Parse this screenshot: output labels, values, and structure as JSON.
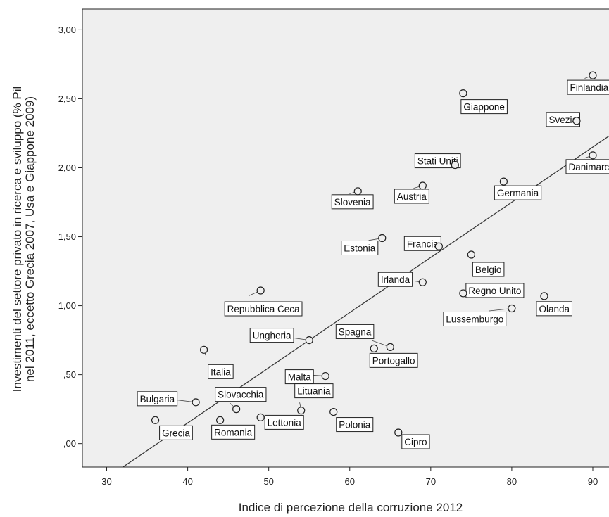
{
  "chart_data": {
    "type": "scatter",
    "title": "",
    "xlabel": "Indice di percezione della corruzione 2012",
    "ylabel_lines": [
      "Investimenti del settore privato in ricerca e sviluppo (% Pil",
      "nel 2011, eccetto Grecia 2007, Usa e Giappone 2009)"
    ],
    "xlim": [
      27,
      92
    ],
    "ylim": [
      -0.17,
      3.15
    ],
    "xticks": [
      30,
      40,
      50,
      60,
      70,
      80,
      90
    ],
    "xtick_labels": [
      "30",
      "40",
      "50",
      "60",
      "70",
      "80",
      "90"
    ],
    "yticks": [
      0.0,
      0.5,
      1.0,
      1.5,
      2.0,
      2.5,
      3.0
    ],
    "ytick_labels": [
      ",00",
      ",50",
      "1,00",
      "1,50",
      "2,00",
      "2,50",
      "3,00"
    ],
    "background": "#efefef",
    "fit_line": {
      "x": [
        32,
        92
      ],
      "y": [
        -0.17,
        2.23
      ]
    },
    "points": [
      {
        "label": "Finlandia",
        "x": 90,
        "y": 2.67
      },
      {
        "label": "Giappone",
        "x": 74,
        "y": 2.54
      },
      {
        "label": "Svezia",
        "x": 88,
        "y": 2.34
      },
      {
        "label": "Danimarca",
        "x": 90,
        "y": 2.09
      },
      {
        "label": "Stati Uniti",
        "x": 73,
        "y": 2.02
      },
      {
        "label": "Germania",
        "x": 79,
        "y": 1.9
      },
      {
        "label": "Austria",
        "x": 69,
        "y": 1.87
      },
      {
        "label": "Slovenia",
        "x": 61,
        "y": 1.83
      },
      {
        "label": "Estonia",
        "x": 64,
        "y": 1.49
      },
      {
        "label": "Francia",
        "x": 71,
        "y": 1.43
      },
      {
        "label": "Belgio",
        "x": 75,
        "y": 1.37
      },
      {
        "label": "Irlanda",
        "x": 69,
        "y": 1.17
      },
      {
        "label": "Repubblica Ceca",
        "x": 49,
        "y": 1.11
      },
      {
        "label": "Regno Unito",
        "x": 74,
        "y": 1.09
      },
      {
        "label": "Olanda",
        "x": 84,
        "y": 1.07
      },
      {
        "label": "Lussemburgo",
        "x": 80,
        "y": 0.98
      },
      {
        "label": "Ungheria",
        "x": 55,
        "y": 0.75
      },
      {
        "label": "Spagna",
        "x": 65,
        "y": 0.7
      },
      {
        "label": "Portogallo",
        "x": 63,
        "y": 0.69
      },
      {
        "label": "Italia",
        "x": 42,
        "y": 0.68
      },
      {
        "label": "Malta",
        "x": 57,
        "y": 0.49
      },
      {
        "label": "Bulgaria",
        "x": 41,
        "y": 0.3
      },
      {
        "label": "Slovacchia",
        "x": 46,
        "y": 0.25
      },
      {
        "label": "Lituania",
        "x": 54,
        "y": 0.24
      },
      {
        "label": "Polonia",
        "x": 58,
        "y": 0.23
      },
      {
        "label": "Lettonia",
        "x": 49,
        "y": 0.19
      },
      {
        "label": "Grecia",
        "x": 36,
        "y": 0.17
      },
      {
        "label": "Romania",
        "x": 44,
        "y": 0.17
      },
      {
        "label": "Cipro",
        "x": 66,
        "y": 0.08
      }
    ]
  }
}
